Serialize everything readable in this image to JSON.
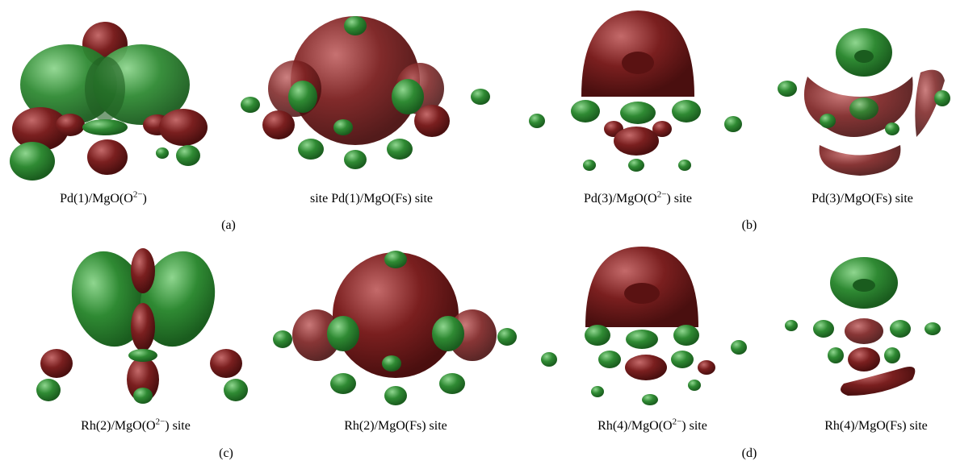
{
  "figure": {
    "rows": [
      {
        "images": [
          {
            "caption_main": "Pd(1)/MgO(O",
            "caption_sup": "2−",
            "caption_end": ")"
          },
          {
            "caption_main": "site Pd(1)/MgO(Fs) site",
            "caption_sup": "",
            "caption_end": ""
          },
          {
            "caption_main": "Pd(3)/MgO(O",
            "caption_sup": "2−",
            "caption_end": ") site"
          },
          {
            "caption_main": "Pd(3)/MgO(Fs) site",
            "caption_sup": "",
            "caption_end": ""
          }
        ],
        "tags": [
          "(a)",
          "(b)"
        ]
      },
      {
        "images": [
          {
            "caption_main": "Rh(2)/MgO(O",
            "caption_sup": "2−",
            "caption_end": ") site"
          },
          {
            "caption_main": "Rh(2)/MgO(Fs) site",
            "caption_sup": "",
            "caption_end": ""
          },
          {
            "caption_main": "Rh(4)/MgO(O",
            "caption_sup": "2−",
            "caption_end": ") site"
          },
          {
            "caption_main": "Rh(4)/MgO(Fs) site",
            "caption_sup": "",
            "caption_end": ""
          }
        ],
        "tags": [
          "(c)",
          "(d)"
        ]
      }
    ],
    "colors": {
      "lobe_red": "#7a1f1f",
      "lobe_green": "#2f8a33"
    }
  }
}
